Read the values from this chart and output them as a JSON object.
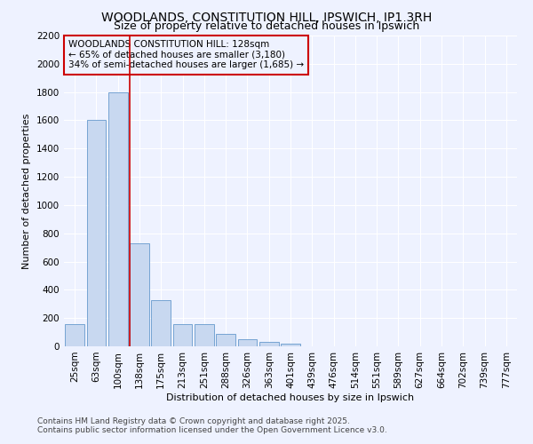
{
  "title": "WOODLANDS, CONSTITUTION HILL, IPSWICH, IP1 3RH",
  "subtitle": "Size of property relative to detached houses in Ipswich",
  "xlabel": "Distribution of detached houses by size in Ipswich",
  "ylabel": "Number of detached properties",
  "categories": [
    "25sqm",
    "63sqm",
    "100sqm",
    "138sqm",
    "175sqm",
    "213sqm",
    "251sqm",
    "288sqm",
    "326sqm",
    "363sqm",
    "401sqm",
    "439sqm",
    "476sqm",
    "514sqm",
    "551sqm",
    "589sqm",
    "627sqm",
    "664sqm",
    "702sqm",
    "739sqm",
    "777sqm"
  ],
  "values": [
    160,
    1600,
    1800,
    730,
    325,
    160,
    160,
    85,
    50,
    30,
    20,
    0,
    0,
    0,
    0,
    0,
    0,
    0,
    0,
    0,
    0
  ],
  "bar_color": "#c8d8f0",
  "bar_edge_color": "#6699cc",
  "vline_x_index": 3,
  "vline_color": "#cc0000",
  "annotation_text": "WOODLANDS CONSTITUTION HILL: 128sqm\n← 65% of detached houses are smaller (3,180)\n34% of semi-detached houses are larger (1,685) →",
  "annotation_box_color": "#cc0000",
  "ylim": [
    0,
    2200
  ],
  "yticks": [
    0,
    200,
    400,
    600,
    800,
    1000,
    1200,
    1400,
    1600,
    1800,
    2000,
    2200
  ],
  "bg_color": "#eef2ff",
  "footer_line1": "Contains HM Land Registry data © Crown copyright and database right 2025.",
  "footer_line2": "Contains public sector information licensed under the Open Government Licence v3.0.",
  "title_fontsize": 10,
  "subtitle_fontsize": 9,
  "axis_label_fontsize": 8,
  "tick_fontsize": 7.5,
  "annotation_fontsize": 7.5,
  "footer_fontsize": 6.5
}
